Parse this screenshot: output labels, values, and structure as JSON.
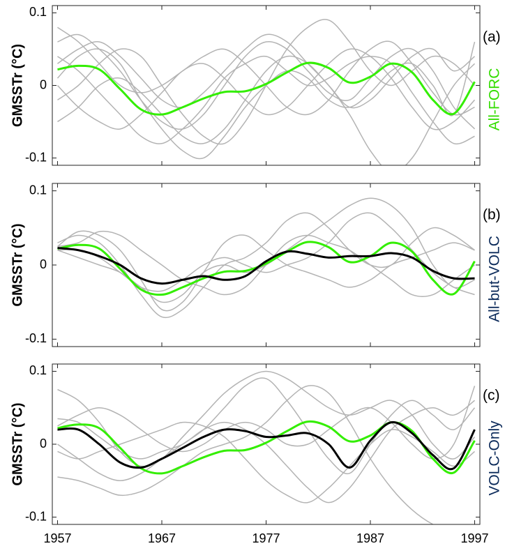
{
  "chart_data": [
    {
      "type": "line",
      "panel_label": "(a)",
      "side_label": "All-FORC",
      "side_label_color": "#33dd00",
      "ylabel": "GMSSTr  (°C)",
      "x": [
        1957,
        1959,
        1961,
        1963,
        1965,
        1967,
        1969,
        1971,
        1973,
        1975,
        1977,
        1979,
        1981,
        1983,
        1985,
        1987,
        1989,
        1991,
        1993,
        1995,
        1997
      ],
      "xlim": [
        1956.5,
        1997.5
      ],
      "ylim": [
        -0.11,
        0.11
      ],
      "yticks": [
        0.1,
        0,
        -0.1
      ],
      "xticks": [
        1957,
        1967,
        1977,
        1987,
        1997
      ],
      "series": [
        {
          "color": "#b3b3b3",
          "values": [
            0.06,
            0.07,
            0.05,
            0.02,
            -0.02,
            -0.05,
            -0.06,
            -0.04,
            0.0,
            0.04,
            0.06,
            0.05,
            0.02,
            -0.01,
            -0.02,
            0.01,
            0.04,
            0.05,
            0.02,
            -0.03,
            -0.06
          ]
        },
        {
          "color": "#b3b3b3",
          "values": [
            -0.02,
            0.0,
            0.03,
            0.05,
            0.04,
            0.0,
            -0.04,
            -0.07,
            -0.08,
            -0.05,
            0.0,
            0.05,
            0.08,
            0.09,
            0.06,
            0.02,
            0.0,
            0.02,
            0.04,
            0.03,
            0.0
          ]
        },
        {
          "color": "#b3b3b3",
          "values": [
            0.04,
            0.02,
            -0.01,
            -0.04,
            -0.07,
            -0.08,
            -0.06,
            -0.03,
            0.01,
            0.03,
            0.04,
            0.02,
            0.0,
            0.01,
            0.03,
            0.04,
            0.03,
            -0.01,
            -0.05,
            -0.08,
            -0.07
          ]
        },
        {
          "color": "#b3b3b3",
          "values": [
            0.0,
            -0.03,
            -0.05,
            -0.06,
            -0.04,
            -0.01,
            0.02,
            0.03,
            0.01,
            -0.02,
            -0.04,
            -0.03,
            0.0,
            0.03,
            0.05,
            0.04,
            0.01,
            -0.03,
            -0.06,
            -0.05,
            -0.02
          ]
        },
        {
          "color": "#b3b3b3",
          "values": [
            0.08,
            0.06,
            0.03,
            0.0,
            -0.01,
            0.0,
            0.02,
            0.04,
            0.05,
            0.03,
            0.0,
            -0.03,
            -0.04,
            -0.02,
            0.02,
            0.05,
            0.06,
            0.03,
            -0.01,
            -0.04,
            -0.03
          ]
        },
        {
          "color": "#b3b3b3",
          "values": [
            -0.05,
            -0.03,
            0.0,
            0.01,
            -0.01,
            -0.04,
            -0.07,
            -0.08,
            -0.06,
            -0.02,
            0.02,
            0.04,
            0.03,
            0.0,
            -0.03,
            -0.02,
            0.01,
            0.04,
            0.05,
            0.02,
            0.04
          ]
        },
        {
          "color": "#b3b3b3",
          "values": [
            0.03,
            0.05,
            0.06,
            0.04,
            0.01,
            -0.02,
            -0.03,
            -0.01,
            0.02,
            0.05,
            0.07,
            0.06,
            0.03,
            0.0,
            -0.04,
            -0.09,
            -0.12,
            -0.1,
            -0.05,
            0.0,
            0.03
          ]
        },
        {
          "color": "#b3b3b3",
          "values": [
            0.01,
            0.04,
            0.05,
            0.03,
            -0.02,
            -0.06,
            -0.09,
            -0.1,
            -0.07,
            -0.03,
            0.0,
            0.02,
            0.01,
            -0.02,
            -0.03,
            -0.01,
            0.02,
            0.03,
            0.0,
            -0.04,
            0.06
          ]
        },
        {
          "color": "#33ee00",
          "width": 3,
          "values": [
            0.022,
            0.027,
            0.022,
            -0.005,
            -0.033,
            -0.04,
            -0.03,
            -0.018,
            -0.009,
            -0.008,
            0.002,
            0.018,
            0.031,
            0.024,
            0.004,
            0.012,
            0.03,
            0.018,
            -0.02,
            -0.039,
            0.005
          ]
        }
      ]
    },
    {
      "type": "line",
      "panel_label": "(b)",
      "side_label": "All-but-VOLC",
      "side_label_color": "#0b2a5a",
      "ylabel": "GMSSTr  (°C)",
      "x": [
        1957,
        1959,
        1961,
        1963,
        1965,
        1967,
        1969,
        1971,
        1973,
        1975,
        1977,
        1979,
        1981,
        1983,
        1985,
        1987,
        1989,
        1991,
        1993,
        1995,
        1997
      ],
      "xlim": [
        1956.5,
        1997.5
      ],
      "ylim": [
        -0.11,
        0.11
      ],
      "yticks": [
        0.1,
        0,
        -0.1
      ],
      "xticks": [
        1957,
        1967,
        1977,
        1987,
        1997
      ],
      "series": [
        {
          "color": "#b3b3b3",
          "values": [
            0.025,
            0.045,
            0.04,
            0.02,
            -0.02,
            -0.06,
            -0.05,
            -0.01,
            0.03,
            0.04,
            0.02,
            0.0,
            -0.01,
            -0.02,
            -0.03,
            -0.02,
            0.0,
            0.01,
            0.02,
            0.03,
            0.02
          ]
        },
        {
          "color": "#b3b3b3",
          "values": [
            0.03,
            0.04,
            0.03,
            0.0,
            -0.04,
            -0.07,
            -0.06,
            -0.03,
            0.0,
            0.01,
            0.03,
            0.06,
            0.07,
            0.05,
            0.02,
            0.0,
            0.0,
            0.03,
            0.05,
            0.04,
            0.02
          ]
        },
        {
          "color": "#b3b3b3",
          "values": [
            0.02,
            0.01,
            0.0,
            -0.01,
            -0.03,
            -0.05,
            -0.04,
            -0.01,
            0.0,
            -0.01,
            0.0,
            0.02,
            0.04,
            0.06,
            0.08,
            0.09,
            0.08,
            0.05,
            0.0,
            -0.03,
            -0.02
          ]
        },
        {
          "color": "#b3b3b3",
          "values": [
            0.025,
            0.03,
            0.045,
            0.04,
            0.02,
            0.0,
            -0.02,
            -0.03,
            -0.04,
            -0.03,
            0.0,
            0.03,
            0.04,
            0.03,
            0.02,
            0.0,
            -0.02,
            -0.04,
            -0.04,
            -0.02,
            0.0
          ]
        },
        {
          "color": "#b3b3b3",
          "values": [
            0.02,
            0.02,
            0.01,
            -0.01,
            -0.03,
            -0.035,
            -0.02,
            0.0,
            0.01,
            0.0,
            -0.01,
            0.0,
            0.01,
            0.03,
            0.06,
            0.07,
            0.05,
            0.02,
            -0.01,
            -0.03,
            -0.04
          ]
        },
        {
          "color": "#33ee00",
          "width": 3,
          "values": [
            0.022,
            0.027,
            0.022,
            -0.005,
            -0.033,
            -0.04,
            -0.03,
            -0.018,
            -0.009,
            -0.008,
            0.002,
            0.018,
            0.031,
            0.024,
            0.004,
            0.012,
            0.03,
            0.018,
            -0.02,
            -0.039,
            0.005
          ]
        },
        {
          "color": "#000000",
          "width": 3,
          "values": [
            0.023,
            0.02,
            0.012,
            0.0,
            -0.018,
            -0.025,
            -0.02,
            -0.015,
            -0.02,
            -0.015,
            0.005,
            0.018,
            0.015,
            0.01,
            0.012,
            0.012,
            0.016,
            0.01,
            -0.008,
            -0.018,
            -0.018
          ]
        }
      ]
    },
    {
      "type": "line",
      "panel_label": "(c)",
      "side_label": "VOLC-Only",
      "side_label_color": "#0b2a5a",
      "ylabel": "GMSSTr  (°C)",
      "x": [
        1957,
        1959,
        1961,
        1963,
        1965,
        1967,
        1969,
        1971,
        1973,
        1975,
        1977,
        1979,
        1981,
        1983,
        1985,
        1987,
        1989,
        1991,
        1993,
        1995,
        1997
      ],
      "xlim": [
        1956.5,
        1997.5
      ],
      "ylim": [
        -0.11,
        0.11
      ],
      "yticks": [
        0.1,
        0,
        -0.1
      ],
      "xticks": [
        1957,
        1967,
        1977,
        1987,
        1997
      ],
      "xtick_labels": true,
      "series": [
        {
          "color": "#b3b3b3",
          "values": [
            0.075,
            0.06,
            0.03,
            -0.01,
            -0.03,
            -0.02,
            0.01,
            0.04,
            0.07,
            0.09,
            0.1,
            0.09,
            0.07,
            0.05,
            0.04,
            0.05,
            0.06,
            0.04,
            0.0,
            -0.02,
            0.01
          ]
        },
        {
          "color": "#b3b3b3",
          "values": [
            -0.045,
            -0.05,
            -0.06,
            -0.07,
            -0.065,
            -0.05,
            -0.03,
            -0.01,
            0.0,
            0.01,
            0.03,
            0.06,
            0.08,
            0.07,
            0.03,
            -0.02,
            -0.06,
            -0.09,
            -0.11,
            -0.12,
            -0.12
          ]
        },
        {
          "color": "#b3b3b3",
          "values": [
            0.035,
            0.03,
            0.01,
            -0.01,
            -0.02,
            -0.01,
            0.0,
            0.02,
            0.03,
            0.02,
            0.0,
            -0.03,
            -0.06,
            -0.08,
            -0.06,
            -0.02,
            0.02,
            0.04,
            0.05,
            0.04,
            0.06
          ]
        },
        {
          "color": "#b3b3b3",
          "values": [
            0.0,
            -0.02,
            -0.04,
            -0.05,
            -0.04,
            -0.02,
            0.0,
            0.02,
            0.05,
            0.08,
            0.09,
            0.06,
            0.02,
            -0.02,
            -0.04,
            0.0,
            0.04,
            0.06,
            0.04,
            0.02,
            0.05
          ]
        },
        {
          "color": "#b3b3b3",
          "values": [
            0.025,
            0.04,
            0.05,
            0.04,
            0.02,
            0.0,
            -0.01,
            0.0,
            0.02,
            0.03,
            0.02,
            0.0,
            0.0,
            0.02,
            0.04,
            0.05,
            0.03,
            0.0,
            -0.02,
            0.0,
            0.08
          ]
        },
        {
          "color": "#b3b3b3",
          "values": [
            -0.01,
            -0.02,
            -0.01,
            0.0,
            0.01,
            0.02,
            0.03,
            0.025,
            0.01,
            -0.02,
            -0.05,
            -0.07,
            -0.08,
            -0.06,
            -0.03,
            0.0,
            0.02,
            0.01,
            -0.01,
            -0.03,
            -0.01
          ]
        },
        {
          "color": "#33ee00",
          "width": 3,
          "values": [
            0.022,
            0.027,
            0.022,
            -0.005,
            -0.033,
            -0.04,
            -0.03,
            -0.018,
            -0.009,
            -0.008,
            0.002,
            0.018,
            0.031,
            0.024,
            0.004,
            0.012,
            0.03,
            0.018,
            -0.02,
            -0.039,
            0.005
          ]
        },
        {
          "color": "#000000",
          "width": 3,
          "values": [
            0.02,
            0.02,
            0.0,
            -0.025,
            -0.032,
            -0.02,
            -0.005,
            0.01,
            0.02,
            0.018,
            0.01,
            0.012,
            0.015,
            0.0,
            -0.032,
            0.005,
            0.03,
            0.015,
            -0.015,
            -0.033,
            0.02
          ]
        }
      ]
    }
  ]
}
